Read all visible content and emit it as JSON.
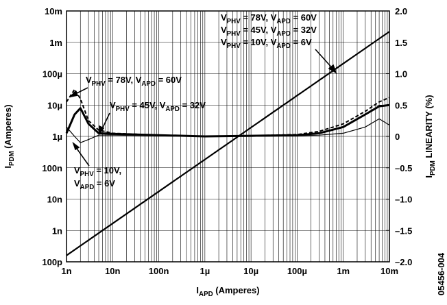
{
  "chart_data": {
    "type": "line",
    "log_y": true,
    "log_x": true,
    "grid": true,
    "x_minor_grid": true,
    "xlim": [
      1e-09,
      0.01
    ],
    "xticks": [
      {
        "value": 1e-09,
        "label": "1n"
      },
      {
        "value": 1e-08,
        "label": "10n"
      },
      {
        "value": 1e-07,
        "label": "100n"
      },
      {
        "value": 1e-06,
        "label": "1µ"
      },
      {
        "value": 1e-05,
        "label": "10µ"
      },
      {
        "value": 0.0001,
        "label": "100µ"
      },
      {
        "value": 0.001,
        "label": "1m"
      },
      {
        "value": 0.01,
        "label": "10m"
      }
    ],
    "ylim": [
      1e-10,
      0.01
    ],
    "yticks": [
      {
        "value": 1e-10,
        "label": "100p"
      },
      {
        "value": 1e-09,
        "label": "1n"
      },
      {
        "value": 1e-08,
        "label": "10n"
      },
      {
        "value": 1e-07,
        "label": "100n"
      },
      {
        "value": 1e-06,
        "label": "1µ"
      },
      {
        "value": 1e-05,
        "label": "10µ"
      },
      {
        "value": 0.0001,
        "label": "100µ"
      },
      {
        "value": 0.001,
        "label": "1m"
      },
      {
        "value": 0.01,
        "label": "10m"
      }
    ],
    "y2lim": [
      -2,
      2
    ],
    "y2ticks": [
      {
        "value": -2,
        "label": "–2.0"
      },
      {
        "value": -1.5,
        "label": "–1.5"
      },
      {
        "value": -1,
        "label": "–1.0"
      },
      {
        "value": -0.5,
        "label": "–0.5"
      },
      0,
      {
        "value": 0.5,
        "label": "0.5"
      },
      {
        "value": 1,
        "label": "1.0"
      },
      {
        "value": 1.5,
        "label": "1.5"
      },
      {
        "value": 2,
        "label": "2.0"
      }
    ],
    "xlabel": [
      "I",
      "APD",
      " (Amperes)"
    ],
    "ylabel": [
      "I",
      "PDM",
      " (Amperes)"
    ],
    "y2label": [
      "I",
      "PDM",
      " LINEARITY (%)"
    ],
    "code": "05456-004",
    "series": [
      {
        "axis": "y",
        "color": "#000",
        "width": 2.2,
        "x": [
          1e-09,
          0.01
        ],
        "values": [
          1.6e-10,
          0.0022
        ]
      },
      {
        "axis": "y2",
        "color": "#000",
        "width": 2,
        "dash": "5,3",
        "x": [
          1e-09,
          1.5e-09,
          2e-09,
          3e-09,
          5e-09,
          1e-08,
          1e-07,
          1e-06,
          1e-05,
          0.0001,
          0.0003,
          0.001,
          0.003,
          0.006,
          0.01
        ],
        "values": [
          0.55,
          0.75,
          0.6,
          0.25,
          0.1,
          0.05,
          0.02,
          0,
          0.01,
          0.03,
          0.08,
          0.2,
          0.4,
          0.55,
          0.62
        ]
      },
      {
        "axis": "y2",
        "color": "#000",
        "width": 3,
        "x": [
          1e-09,
          1.5e-09,
          2e-09,
          3e-09,
          5e-09,
          1e-08,
          1e-07,
          1e-06,
          1e-05,
          0.0001,
          0.0003,
          0.001,
          0.003,
          0.006,
          0.01
        ],
        "values": [
          0.05,
          0.35,
          0.45,
          0.2,
          0.05,
          0.04,
          0.02,
          0,
          0.01,
          0.02,
          0.05,
          0.15,
          0.35,
          0.48,
          0.5
        ]
      },
      {
        "axis": "y2",
        "color": "#000",
        "width": 1.2,
        "x": [
          1e-09,
          1.5e-09,
          2e-09,
          3e-09,
          5e-09,
          1e-08,
          1e-07,
          1e-06,
          1e-05,
          0.0001,
          0.0003,
          0.001,
          0.003,
          0.006,
          0.01
        ],
        "values": [
          0.15,
          0.0,
          -0.1,
          -0.05,
          0.02,
          0.02,
          0.01,
          0,
          0,
          0.01,
          0.02,
          0.05,
          0.15,
          0.28,
          0.18
        ]
      }
    ],
    "annotations": [
      [
        "V",
        "PHV",
        " = 78V, V",
        "APD",
        " = 60V"
      ],
      [
        "V",
        "PHV",
        " = 45V, V",
        "APD",
        " = 32V"
      ],
      [
        "V",
        "PHV",
        " = 10V, V",
        "APD",
        " = 6V"
      ],
      [
        "V",
        "PHV",
        " = 78V, V",
        "APD",
        " = 60V"
      ],
      [
        "V",
        "PHV",
        " = 45V, V",
        "APD",
        " = 32V"
      ],
      [
        "V",
        "PHV",
        " = 10V,"
      ],
      [
        "V",
        "APD",
        " = 6V"
      ]
    ]
  }
}
